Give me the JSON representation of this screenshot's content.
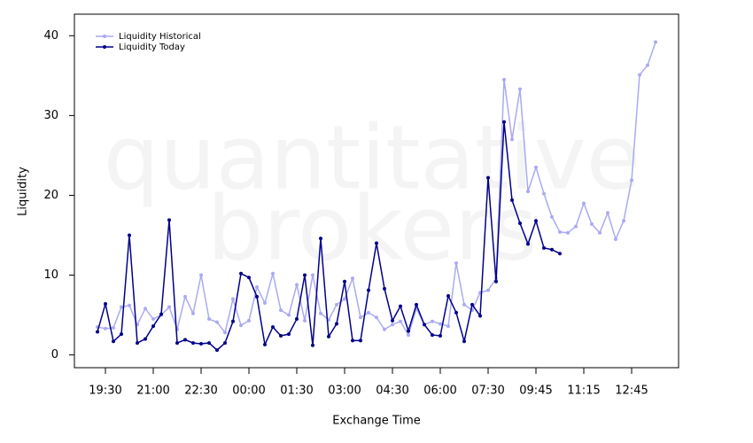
{
  "chart_data": {
    "type": "line",
    "watermark": [
      "quantitative",
      "brokers"
    ],
    "x_label": "Exchange Time",
    "y_label": "Liquidity",
    "categories": [
      null,
      "19:30",
      null,
      null,
      null,
      null,
      null,
      "21:00",
      null,
      null,
      null,
      null,
      null,
      "22:30",
      null,
      null,
      null,
      null,
      null,
      "00:00",
      null,
      null,
      null,
      null,
      null,
      "01:30",
      null,
      null,
      null,
      null,
      null,
      "03:00",
      null,
      null,
      null,
      null,
      null,
      "04:30",
      null,
      null,
      null,
      null,
      null,
      "06:00",
      null,
      null,
      null,
      null,
      null,
      "07:30",
      null,
      null,
      null,
      null,
      null,
      "09:45",
      null,
      null,
      null,
      null,
      null,
      "11:15",
      null,
      null,
      null,
      null,
      null,
      "12:45",
      null,
      null,
      null
    ],
    "series": [
      {
        "name": "Liquidity Historical",
        "color": "#aaaaf2",
        "values": [
          3.5,
          3.3,
          3.4,
          6.0,
          6.2,
          3.8,
          5.8,
          4.5,
          5.0,
          6.0,
          3.2,
          7.3,
          5.2,
          10.0,
          4.5,
          4.1,
          2.8,
          7.0,
          3.7,
          4.3,
          8.5,
          6.5,
          10.2,
          5.6,
          5.0,
          8.8,
          4.3,
          10.0,
          5.2,
          4.4,
          6.3,
          7.0,
          9.6,
          4.7,
          5.3,
          4.7,
          3.2,
          3.8,
          4.2,
          2.5,
          5.8,
          3.8,
          4.2,
          3.9,
          3.6,
          11.5,
          6.3,
          5.6,
          7.8,
          8.1,
          9.6,
          34.5,
          27.0,
          33.3,
          20.5,
          23.5,
          20.2,
          17.3,
          15.4,
          15.3,
          16.1,
          19.0,
          16.4,
          15.3,
          17.8,
          14.5,
          16.8,
          21.9,
          35.1,
          36.3,
          39.2
        ]
      },
      {
        "name": "Liquidity Today",
        "color": "#00008b",
        "values": [
          2.9,
          6.4,
          1.7,
          2.6,
          15.0,
          1.5,
          2.0,
          3.6,
          5.1,
          16.9,
          1.5,
          1.9,
          1.5,
          1.4,
          1.5,
          0.6,
          1.5,
          4.2,
          10.2,
          9.7,
          7.3,
          1.3,
          3.5,
          2.4,
          2.6,
          4.5,
          10.0,
          1.2,
          14.6,
          2.3,
          3.9,
          9.2,
          1.8,
          1.8,
          8.1,
          14.0,
          8.3,
          4.3,
          6.1,
          3.0,
          6.3,
          3.8,
          2.5,
          2.4,
          7.4,
          5.3,
          1.7,
          6.3,
          4.9,
          22.2,
          9.2,
          29.2,
          19.4,
          16.5,
          13.9,
          16.8,
          13.4,
          13.2,
          12.7,
          null,
          null,
          null,
          null,
          null,
          null,
          null,
          null,
          null,
          null,
          null,
          null
        ]
      }
    ],
    "ylim": [
      -1.6,
      42.7
    ],
    "yticks": [
      0,
      10,
      20,
      30,
      40
    ],
    "legend": "top-left"
  }
}
